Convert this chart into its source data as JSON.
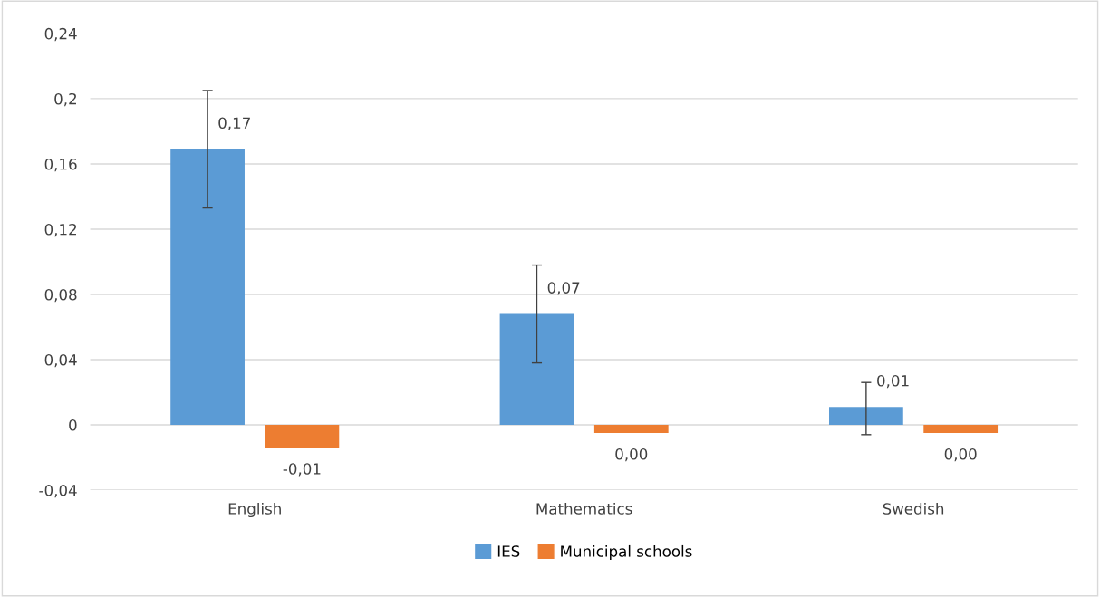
{
  "chart_data": {
    "type": "bar",
    "categories": [
      "English",
      "Mathematics",
      "Swedish"
    ],
    "series": [
      {
        "name": "IES",
        "color": "#5b9bd5",
        "values": [
          0.169,
          0.068,
          0.011
        ],
        "errors": [
          [
            0.133,
            0.205
          ],
          [
            0.038,
            0.098
          ],
          [
            -0.006,
            0.026
          ]
        ],
        "value_labels": [
          "0,17",
          "0,07",
          "0,01"
        ]
      },
      {
        "name": "Municipal schools",
        "color": "#ed7d31",
        "values": [
          -0.014,
          -0.005,
          -0.005
        ],
        "value_labels": [
          "-0,01",
          "0,00",
          "0,00"
        ]
      }
    ],
    "ylim": [
      -0.04,
      0.24
    ],
    "yticks": [
      {
        "value": -0.04,
        "label": "-0,04"
      },
      {
        "value": 0,
        "label": "0"
      },
      {
        "value": 0.04,
        "label": "0,04"
      },
      {
        "value": 0.08,
        "label": "0,08"
      },
      {
        "value": 0.12,
        "label": "0,12"
      },
      {
        "value": 0.16,
        "label": "0,16"
      },
      {
        "value": 0.2,
        "label": "0,2"
      },
      {
        "value": 0.24,
        "label": "0,24"
      }
    ],
    "grid": "y",
    "legend": "bottom"
  }
}
